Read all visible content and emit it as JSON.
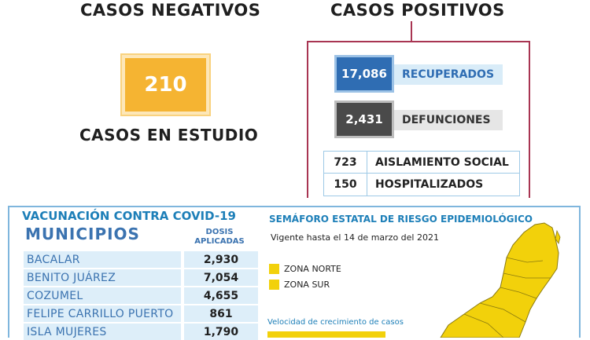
{
  "negativos": {
    "heading": "CASOS NEGATIVOS"
  },
  "estudio": {
    "value": "210",
    "label": "CASOS EN ESTUDIO"
  },
  "positivos": {
    "heading": "CASOS POSITIVOS",
    "recuperados": {
      "value": "17,086",
      "label": "RECUPERADOS"
    },
    "defunciones": {
      "value": "2,431",
      "label": "DEFUNCIONES"
    },
    "table": [
      {
        "value": "723",
        "label": "AISLAMIENTO SOCIAL"
      },
      {
        "value": "150",
        "label": "HOSPITALIZADOS"
      }
    ]
  },
  "vacunacion": {
    "title": "VACUNACIÓN CONTRA COVID-19",
    "col_municipios": "MUNICIPIOS",
    "col_dosis_1": "DOSIS",
    "col_dosis_2": "APLICADAS",
    "rows": [
      {
        "name": "BACALAR",
        "value": "2,930"
      },
      {
        "name": "BENITO JUÁREZ",
        "value": "7,054"
      },
      {
        "name": "COZUMEL",
        "value": "4,655"
      },
      {
        "name": "FELIPE CARRILLO PUERTO",
        "value": "861"
      },
      {
        "name": "ISLA MUJERES",
        "value": "1,790"
      }
    ]
  },
  "semaforo": {
    "title": "SEMÁFORO ESTATAL DE RIESGO EPIDEMIOLÓGICO",
    "vigencia": "Vigente hasta el 14 de marzo del 2021",
    "legend": [
      {
        "label": "ZONA NORTE",
        "color": "#f2d10b"
      },
      {
        "label": "ZONA SUR",
        "color": "#f2d10b"
      }
    ],
    "velocidad": "Velocidad de crecimiento de casos",
    "map_color": "#f2d10b"
  },
  "colors": {
    "orange": "#f5b432",
    "blue": "#2f6db3",
    "dark_gray": "#4a4a4a",
    "maroon": "#a83552",
    "light_blue": "#d9ecf8",
    "teal": "#1d7fb8"
  }
}
